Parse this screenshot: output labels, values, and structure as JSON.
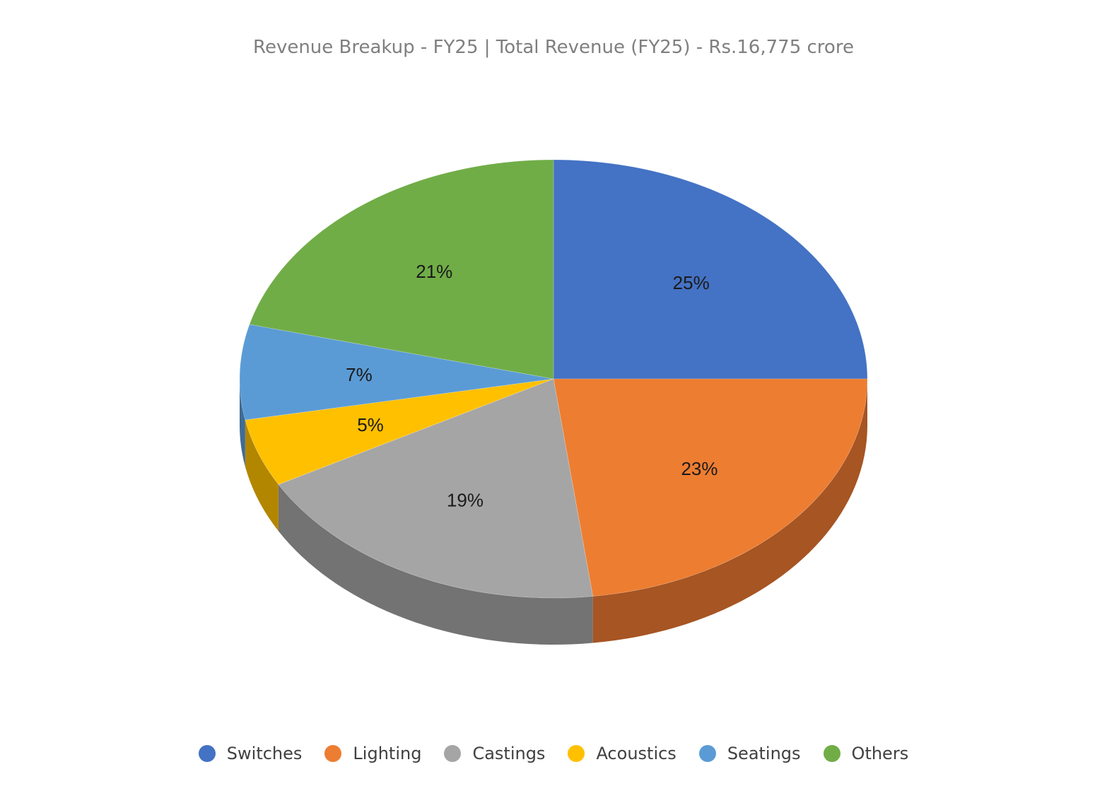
{
  "chart_data": {
    "type": "pie",
    "title": "Revenue Breakup - FY25 | Total Revenue (FY25) - Rs.16,775 crore",
    "style": "3d",
    "legend_position": "bottom",
    "slices": [
      {
        "label": "Switches",
        "value": 25,
        "display": "25%",
        "color": "#4472c4",
        "side_color": "#2f5597"
      },
      {
        "label": "Lighting",
        "value": 23,
        "display": "23%",
        "color": "#ed7d31",
        "side_color": "#a65523"
      },
      {
        "label": "Castings",
        "value": 19,
        "display": "19%",
        "color": "#a5a5a5",
        "side_color": "#737373"
      },
      {
        "label": "Acoustics",
        "value": 5,
        "display": "5%",
        "color": "#ffc000",
        "side_color": "#b38600"
      },
      {
        "label": "Seatings",
        "value": 7,
        "display": "7%",
        "color": "#5b9bd5",
        "side_color": "#3f6c95"
      },
      {
        "label": "Others",
        "value": 21,
        "display": "21%",
        "color": "#70ad47",
        "side_color": "#4e7932"
      }
    ]
  }
}
